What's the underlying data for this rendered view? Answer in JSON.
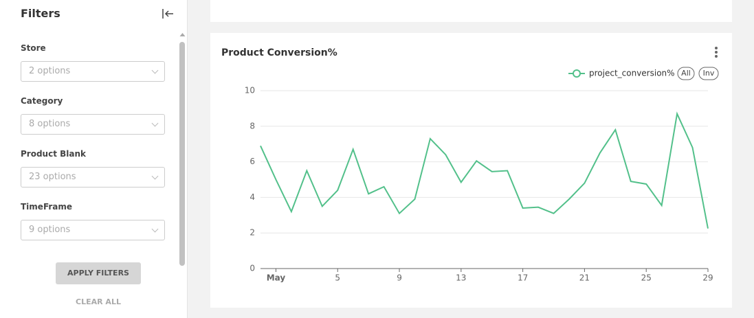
{
  "sidebar": {
    "title": "Filters",
    "filters": [
      {
        "label": "Store",
        "placeholder": "2 options"
      },
      {
        "label": "Category",
        "placeholder": "8 options"
      },
      {
        "label": "Product Blank",
        "placeholder": "23 options"
      },
      {
        "label": "TimeFrame",
        "placeholder": "9 options"
      }
    ],
    "apply": "APPLY FILTERS",
    "clear": "CLEAR ALL"
  },
  "chart_data": {
    "type": "line",
    "title": "Product Conversion%",
    "categories": [
      null,
      "May",
      null,
      null,
      null,
      "5",
      null,
      null,
      null,
      "9",
      null,
      null,
      null,
      "13",
      null,
      null,
      null,
      "17",
      null,
      null,
      null,
      "21",
      null,
      null,
      null,
      "25",
      null,
      null,
      null,
      "29"
    ],
    "series": [
      {
        "name": "project_conversion%",
        "color": "#52c08a",
        "values": [
          6.9,
          5,
          3.2,
          5.5,
          3.5,
          4.4,
          6.7,
          4.2,
          4.6,
          3.1,
          3.9,
          7.3,
          6.4,
          4.85,
          6.05,
          5.45,
          5.5,
          3.4,
          3.45,
          3.1,
          3.9,
          4.8,
          6.5,
          7.8,
          4.9,
          4.75,
          3.55,
          8.7,
          6.8,
          2.25
        ]
      }
    ],
    "legend_buttons": [
      "All",
      "Inv"
    ],
    "ylim": [
      0,
      10
    ],
    "yticks": [
      0,
      2,
      4,
      6,
      8,
      10
    ],
    "grid": true
  }
}
